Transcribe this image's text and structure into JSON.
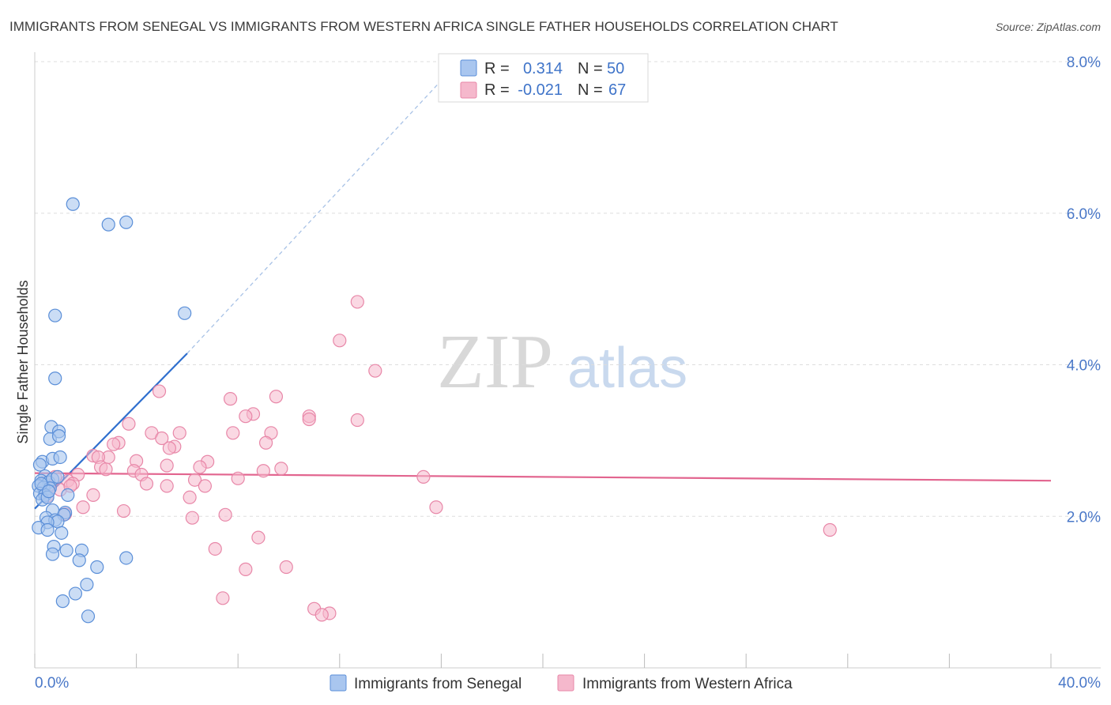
{
  "title": "IMMIGRANTS FROM SENEGAL VS IMMIGRANTS FROM WESTERN AFRICA SINGLE FATHER HOUSEHOLDS CORRELATION CHART",
  "source": "Source: ZipAtlas.com",
  "watermark": {
    "zip": "ZIP",
    "atlas": "atlas"
  },
  "legend": {
    "r_label": "R =",
    "n_label": "N =",
    "senegal": {
      "r": "0.314",
      "n": "50"
    },
    "western_africa": {
      "r": "-0.021",
      "n": "67"
    }
  },
  "colors": {
    "senegal_fill": "#a9c6ef",
    "senegal_stroke": "#5b8fd8",
    "senegal_line": "#2f6fce",
    "wa_fill": "#f5b8cc",
    "wa_stroke": "#e887a8",
    "wa_line": "#e2658f",
    "grid": "#dddddd",
    "tick_text": "#4a78c8"
  },
  "chart_data": {
    "type": "scatter",
    "title": "IMMIGRANTS FROM SENEGAL VS IMMIGRANTS FROM WESTERN AFRICA SINGLE FATHER HOUSEHOLDS CORRELATION CHART",
    "xlabel": "",
    "ylabel": "Single Father Households",
    "xlim": [
      0,
      40
    ],
    "ylim": [
      0,
      8
    ],
    "x_tick_labels": [
      "0.0%",
      "40.0%"
    ],
    "y_ticks": [
      2,
      4,
      6,
      8
    ],
    "y_tick_labels": [
      "2.0%",
      "4.0%",
      "6.0%",
      "8.0%"
    ],
    "series": [
      {
        "name": "Immigrants from Senegal",
        "trend": {
          "x": [
            0.0,
            6.0
          ],
          "y": [
            2.1,
            4.15
          ],
          "dashed_extension_to": [
            16.0,
            7.75
          ]
        },
        "points": [
          [
            1.5,
            6.12
          ],
          [
            2.9,
            5.85
          ],
          [
            3.6,
            5.88
          ],
          [
            0.8,
            4.65
          ],
          [
            5.9,
            4.68
          ],
          [
            0.8,
            3.82
          ],
          [
            0.65,
            3.18
          ],
          [
            0.95,
            3.12
          ],
          [
            0.6,
            3.02
          ],
          [
            0.95,
            3.06
          ],
          [
            0.3,
            2.72
          ],
          [
            0.7,
            2.76
          ],
          [
            1.0,
            2.78
          ],
          [
            0.2,
            2.68
          ],
          [
            0.4,
            2.53
          ],
          [
            0.25,
            2.47
          ],
          [
            0.55,
            2.45
          ],
          [
            0.7,
            2.49
          ],
          [
            0.15,
            2.4
          ],
          [
            0.35,
            2.38
          ],
          [
            0.6,
            2.37
          ],
          [
            0.2,
            2.3
          ],
          [
            0.4,
            2.28
          ],
          [
            1.3,
            2.28
          ],
          [
            0.3,
            2.22
          ],
          [
            0.5,
            2.25
          ],
          [
            0.7,
            2.08
          ],
          [
            1.2,
            2.05
          ],
          [
            1.15,
            2.02
          ],
          [
            0.45,
            1.98
          ],
          [
            0.8,
            1.95
          ],
          [
            0.9,
            1.93
          ],
          [
            0.5,
            1.92
          ],
          [
            0.15,
            1.85
          ],
          [
            0.5,
            1.82
          ],
          [
            1.05,
            1.78
          ],
          [
            0.75,
            1.6
          ],
          [
            1.25,
            1.55
          ],
          [
            1.85,
            1.55
          ],
          [
            0.7,
            1.5
          ],
          [
            3.6,
            1.45
          ],
          [
            1.75,
            1.42
          ],
          [
            2.45,
            1.33
          ],
          [
            2.05,
            1.1
          ],
          [
            1.6,
            0.98
          ],
          [
            1.1,
            0.88
          ],
          [
            2.1,
            0.68
          ],
          [
            0.25,
            2.43
          ],
          [
            0.55,
            2.33
          ],
          [
            0.9,
            2.52
          ]
        ]
      },
      {
        "name": "Immigrants from Western Africa",
        "trend": {
          "x": [
            0.0,
            40.0
          ],
          "y": [
            2.57,
            2.47
          ]
        },
        "points": [
          [
            12.7,
            4.83
          ],
          [
            12.0,
            4.32
          ],
          [
            13.4,
            3.92
          ],
          [
            4.9,
            3.65
          ],
          [
            7.7,
            3.55
          ],
          [
            9.5,
            3.58
          ],
          [
            8.6,
            3.35
          ],
          [
            8.3,
            3.32
          ],
          [
            10.8,
            3.32
          ],
          [
            10.8,
            3.28
          ],
          [
            12.7,
            3.27
          ],
          [
            3.7,
            3.22
          ],
          [
            4.6,
            3.1
          ],
          [
            5.7,
            3.1
          ],
          [
            7.8,
            3.1
          ],
          [
            9.3,
            3.1
          ],
          [
            5.0,
            3.03
          ],
          [
            9.1,
            2.97
          ],
          [
            3.3,
            2.97
          ],
          [
            3.1,
            2.95
          ],
          [
            5.5,
            2.92
          ],
          [
            5.3,
            2.9
          ],
          [
            2.3,
            2.8
          ],
          [
            2.9,
            2.78
          ],
          [
            2.5,
            2.78
          ],
          [
            4.0,
            2.73
          ],
          [
            6.8,
            2.72
          ],
          [
            5.2,
            2.67
          ],
          [
            6.5,
            2.65
          ],
          [
            2.6,
            2.65
          ],
          [
            9.7,
            2.63
          ],
          [
            9.0,
            2.6
          ],
          [
            2.8,
            2.62
          ],
          [
            3.9,
            2.6
          ],
          [
            4.2,
            2.55
          ],
          [
            1.7,
            2.55
          ],
          [
            15.3,
            2.52
          ],
          [
            8.0,
            2.5
          ],
          [
            6.3,
            2.48
          ],
          [
            1.3,
            2.47
          ],
          [
            1.5,
            2.43
          ],
          [
            4.4,
            2.43
          ],
          [
            5.2,
            2.4
          ],
          [
            6.7,
            2.4
          ],
          [
            0.5,
            2.37
          ],
          [
            1.0,
            2.35
          ],
          [
            2.3,
            2.28
          ],
          [
            0.5,
            2.27
          ],
          [
            6.1,
            2.25
          ],
          [
            15.8,
            2.12
          ],
          [
            1.9,
            2.12
          ],
          [
            3.5,
            2.07
          ],
          [
            1.2,
            2.03
          ],
          [
            7.5,
            2.02
          ],
          [
            6.2,
            1.98
          ],
          [
            31.3,
            1.82
          ],
          [
            8.8,
            1.72
          ],
          [
            7.1,
            1.57
          ],
          [
            8.3,
            1.3
          ],
          [
            9.9,
            1.33
          ],
          [
            7.4,
            0.92
          ],
          [
            11.0,
            0.78
          ],
          [
            11.6,
            0.72
          ],
          [
            11.3,
            0.7
          ],
          [
            0.4,
            2.45
          ],
          [
            0.8,
            2.52
          ],
          [
            1.4,
            2.4
          ]
        ]
      }
    ]
  },
  "bottom_legend": {
    "senegal_label": "Immigrants from Senegal",
    "wa_label": "Immigrants from Western Africa"
  }
}
